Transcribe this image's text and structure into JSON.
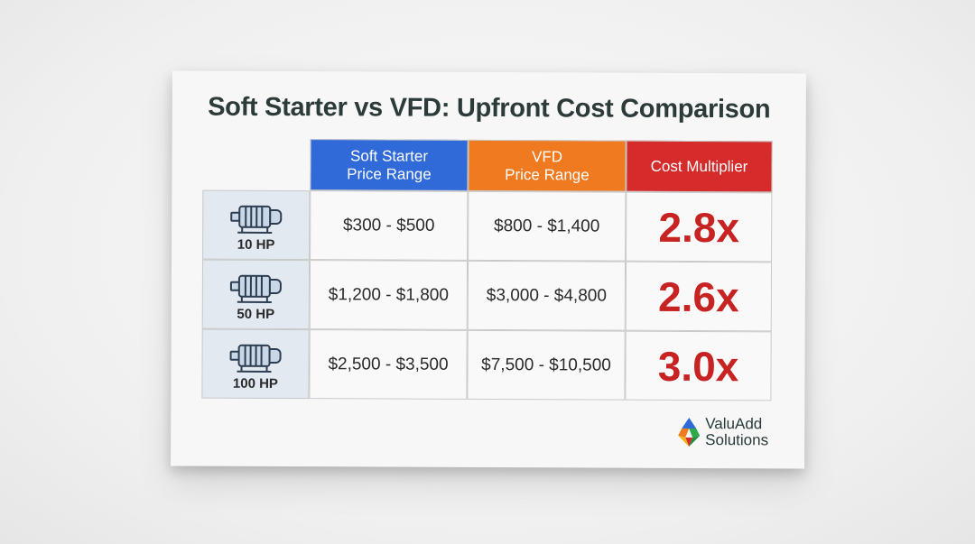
{
  "title": "Soft Starter vs VFD: Upfront Cost Comparison",
  "headers": {
    "soft_line1": "Soft Starter",
    "soft_line2": "Price Range",
    "vfd_line1": "VFD",
    "vfd_line2": "Price Range",
    "multiplier": "Cost Multiplier"
  },
  "rows": [
    {
      "hp": "10 HP",
      "soft": "$300 - $500",
      "vfd": "$800 - $1,400",
      "multiplier": "2.8x"
    },
    {
      "hp": "50 HP",
      "soft": "$1,200 - $1,800",
      "vfd": "$3,000 - $4,800",
      "multiplier": "2.6x"
    },
    {
      "hp": "100 HP",
      "soft": "$2,500 - $3,500",
      "vfd": "$7,500 - $10,500",
      "multiplier": "3.0x"
    }
  ],
  "icons": {
    "motor": "motor-icon",
    "logo": "valuadd-logo-icon"
  },
  "logo": {
    "line1": "ValuAdd",
    "line2": "Solutions"
  },
  "colors": {
    "soft_header": "#2f6ad8",
    "vfd_header": "#ef7a1f",
    "multiplier_header": "#d62b2b",
    "multiplier_text": "#c82323",
    "hp_cell": "#e2e9f1"
  }
}
